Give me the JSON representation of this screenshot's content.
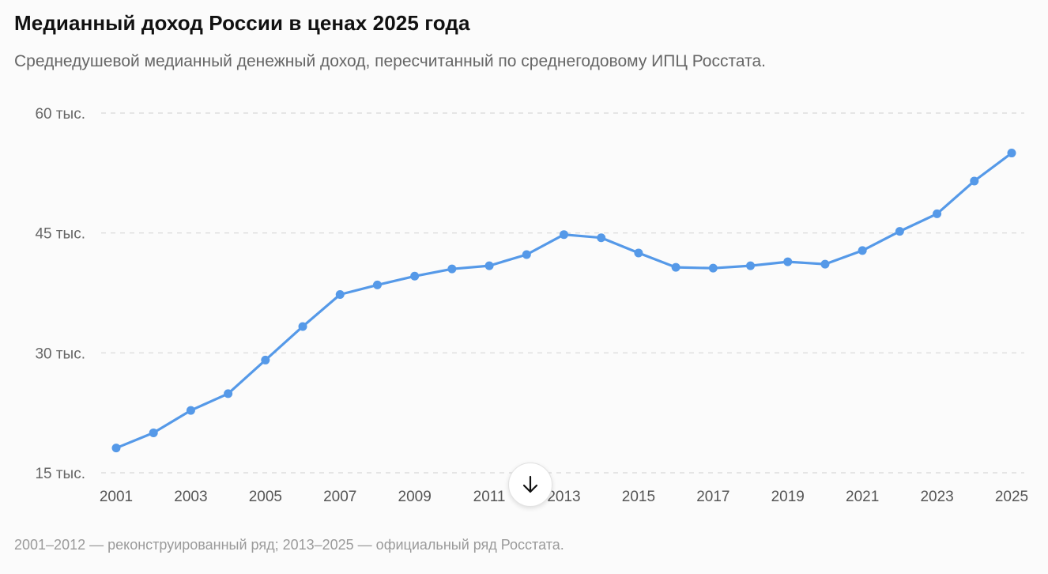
{
  "header": {
    "title": "Медианный доход России в ценах 2025 года",
    "subtitle": "Среднедушевой медианный денежный доход, пересчитанный по среднегодовому ИПЦ Росстата."
  },
  "footer": {
    "note": "2001–2012 — реконструированный ряд; 2013–2025 — официальный ряд Росстата."
  },
  "scroll_button": {
    "icon": "arrow-down-icon"
  },
  "colors": {
    "line": "#5599e8",
    "grid": "#d8d8d8"
  },
  "chart_data": {
    "type": "line",
    "title": "Медианный доход России в ценах 2025 года",
    "xlabel": "",
    "ylabel": "",
    "x": [
      2001,
      2002,
      2003,
      2004,
      2005,
      2006,
      2007,
      2008,
      2009,
      2010,
      2011,
      2012,
      2013,
      2014,
      2015,
      2016,
      2017,
      2018,
      2019,
      2020,
      2021,
      2022,
      2023,
      2024,
      2025
    ],
    "series": [
      {
        "values": [
          18100,
          20000,
          22800,
          24900,
          29100,
          33300,
          37300,
          38500,
          39600,
          40500,
          40900,
          42300,
          44800,
          44400,
          42500,
          40700,
          40600,
          40900,
          41400,
          41100,
          42800,
          45200,
          47400,
          51500,
          55000
        ]
      }
    ],
    "ylim": [
      15000,
      60000
    ],
    "yticks": [
      15000,
      30000,
      45000,
      60000
    ],
    "ytick_labels": [
      "15 тыс.",
      "30 тыс.",
      "45 тыс.",
      "60 тыс."
    ],
    "xticks": [
      2001,
      2003,
      2005,
      2007,
      2009,
      2011,
      2013,
      2015,
      2017,
      2019,
      2021,
      2023,
      2025
    ],
    "xtick_labels": [
      "2001",
      "2003",
      "2005",
      "2007",
      "2009",
      "2011",
      "2013",
      "2015",
      "2017",
      "2019",
      "2021",
      "2023",
      "2025"
    ],
    "grid": true,
    "legend": "none"
  }
}
